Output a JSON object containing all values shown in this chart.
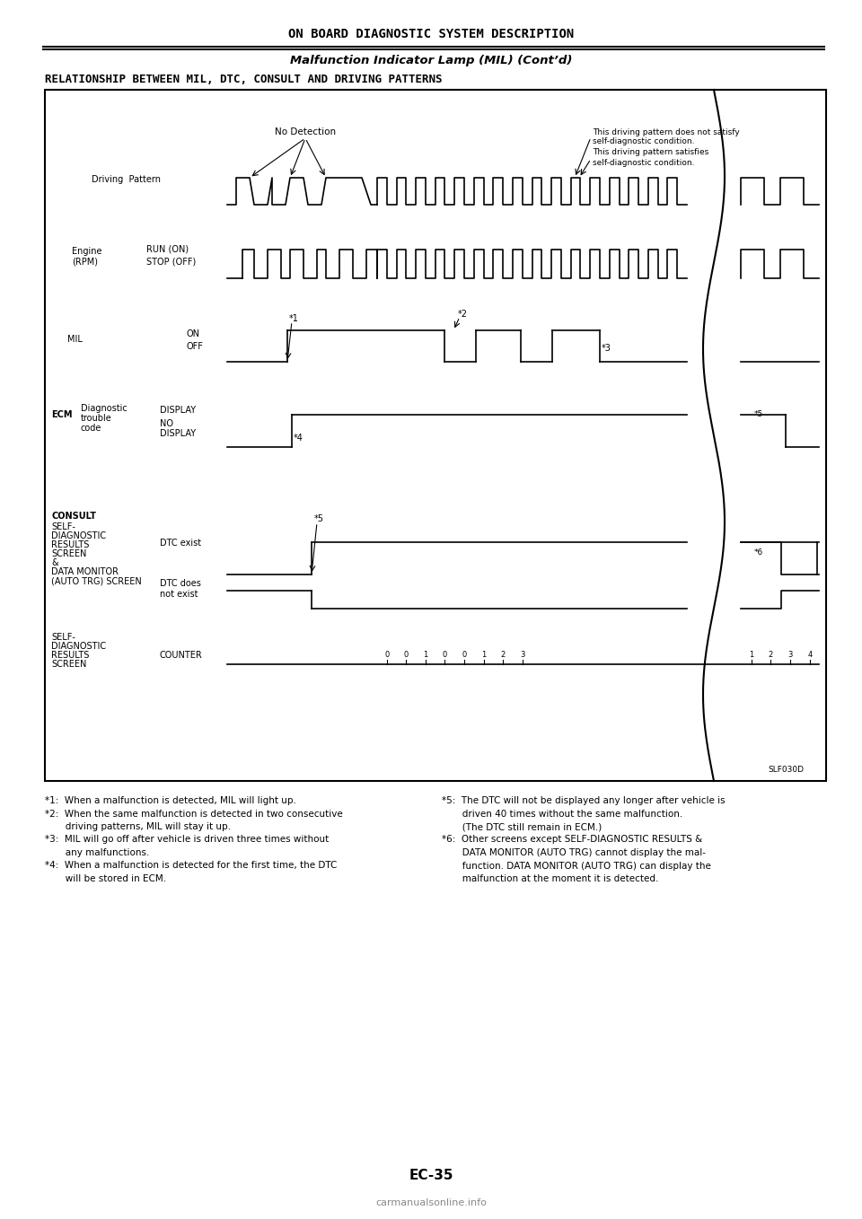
{
  "title1": "ON BOARD DIAGNOSTIC SYSTEM DESCRIPTION",
  "title2": "Malfunction Indicator Lamp (MIL) (Cont’d)",
  "title3": "RELATIONSHIP BETWEEN MIL, DTC, CONSULT AND DRIVING PATTERNS",
  "bg_color": "#ffffff",
  "page_num": "EC-35",
  "footer_code": "SLF030D",
  "footnotes_left": [
    "*1:  When a malfunction is detected, MIL will light up.",
    "*2:  When the same malfunction is detected in two consecutive",
    "       driving patterns, MIL will stay it up.",
    "*3:  MIL will go off after vehicle is driven three times without",
    "       any malfunctions.",
    "*4:  When a malfunction is detected for the first time, the DTC",
    "       will be stored in ECM."
  ],
  "footnotes_right": [
    "*5:  The DTC will not be displayed any longer after vehicle is",
    "       driven 40 times without the same malfunction.",
    "       (The DTC still remain in ECM.)",
    "*6:  Other screens except SELF-DIAGNOSTIC RESULTS &",
    "       DATA MONITOR (AUTO TRG) cannot display the mal-",
    "       function. DATA MONITOR (AUTO TRG) can display the",
    "       malfunction at the moment it is detected."
  ]
}
